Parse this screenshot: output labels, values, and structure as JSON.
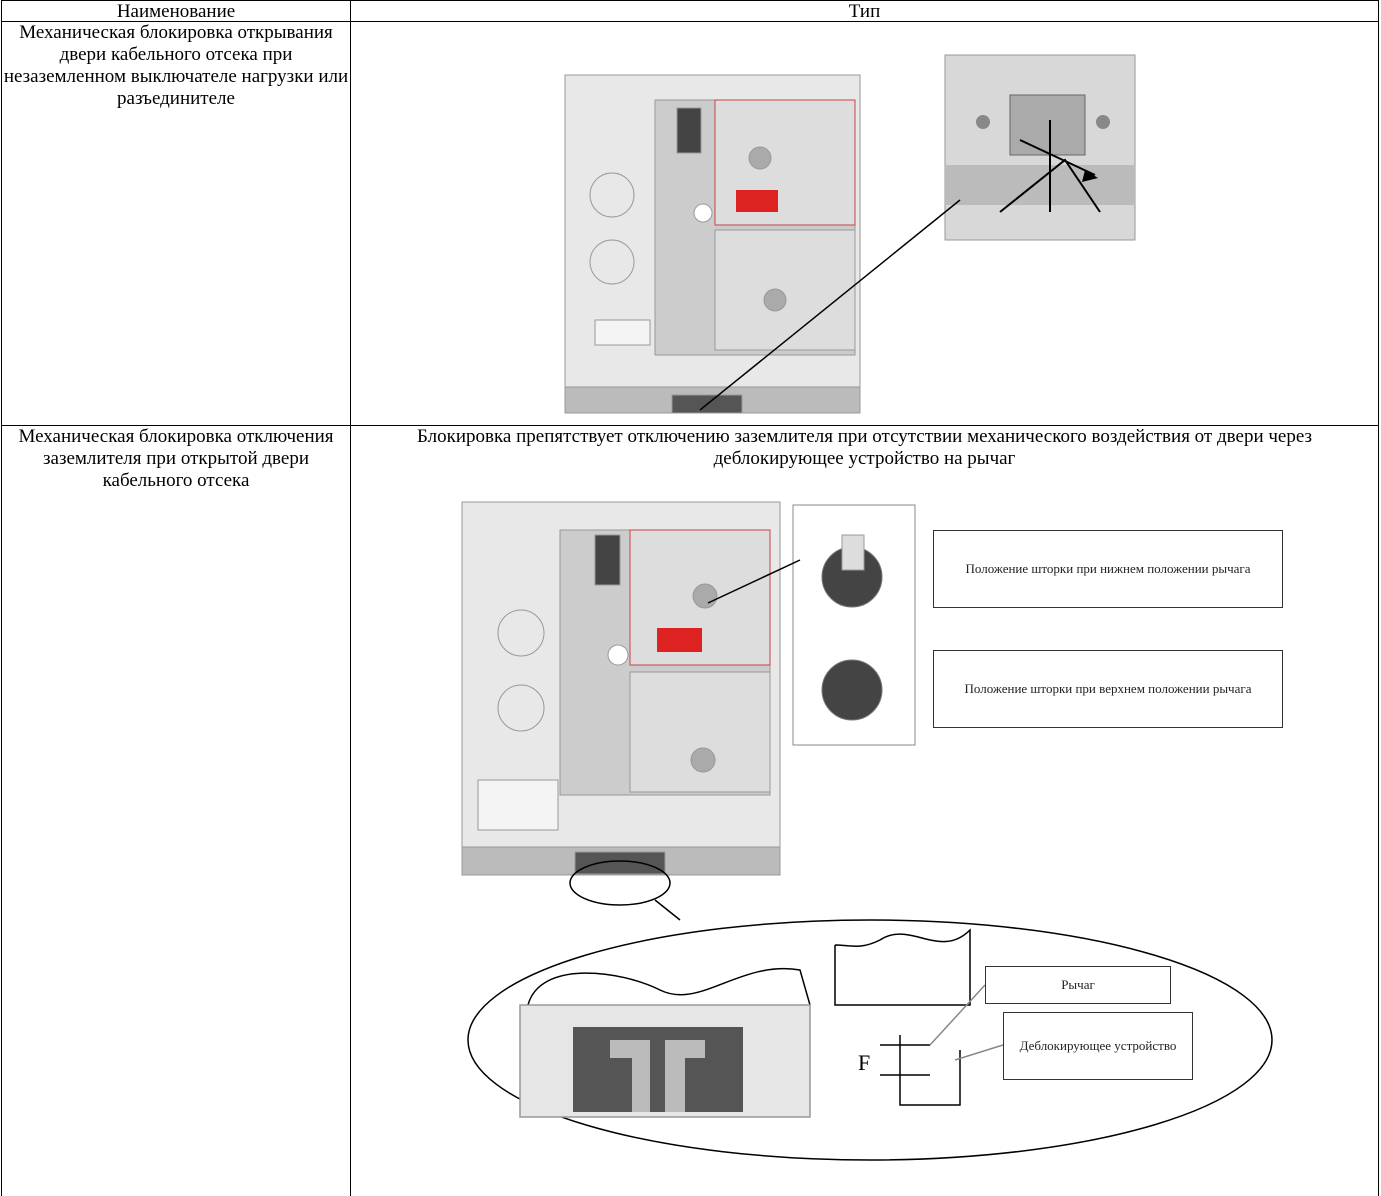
{
  "table": {
    "header": [
      "Наименование",
      "Тип"
    ],
    "rows": [
      {
        "name": "Механическая блокировка открывания двери кабельного отсека при незаземленном выключателе нагрузки или разъединителе"
      },
      {
        "name": "Механическая блокировка отключения заземлителя при открытой двери кабельного отсека",
        "description": "Блокировка препятствует отключению заземлителя при отсутствии механического воздействия от двери через деблокирующее устройство на рычаг",
        "figure_labels": [
          "Положение шторки при нижнем положении рычага",
          "Положение шторки при верхнем положении рычага",
          "Рычаг",
          "Деблокирующее устройство",
          "F"
        ]
      }
    ]
  }
}
